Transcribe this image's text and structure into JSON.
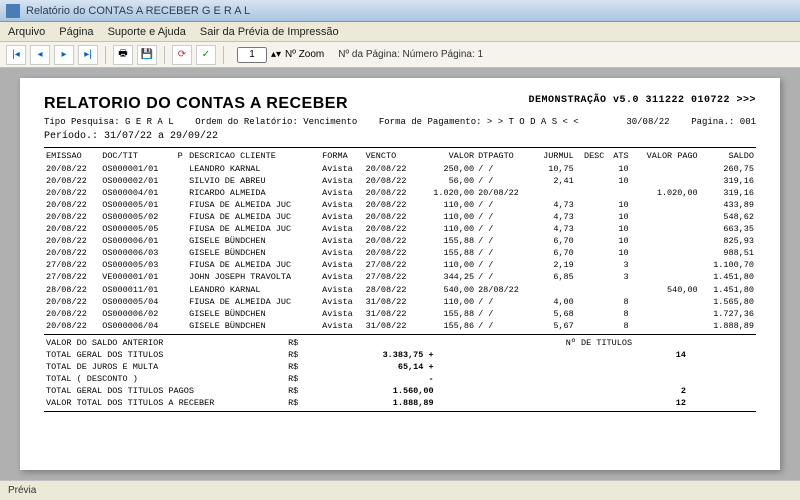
{
  "window": {
    "title": "Relatório do CONTAS A RECEBER G E R A L"
  },
  "menu": {
    "arquivo": "Arquivo",
    "pagina": "Página",
    "suporte": "Suporte e Ajuda",
    "sair": "Sair da Prévia de Impressão"
  },
  "toolbar": {
    "zoom_value": "1",
    "zoom_label": "Nº Zoom",
    "page_label": "Nº da Página: Número Página: 1"
  },
  "report": {
    "title": "RELATORIO DO CONTAS A RECEBER",
    "demo": "DEMONSTRAÇÃO v5.0 311222 010722 >>>",
    "sub1a": "Tipo Pesquisa: G E R A L",
    "sub1b": "Ordem do Relatório: Vencimento",
    "sub1c": "Forma de Pagamento: > > T O D A S < <",
    "date": "30/08/22",
    "pagina": "Pagina.: 001",
    "periodo": "Período.: 31/07/22 a 29/09/22",
    "headers": [
      "EMISSAO",
      "DOC/TIT",
      "P",
      "DESCRICAO CLIENTE",
      "FORMA",
      "VENCTO",
      "VALOR",
      "DTPAGTO",
      "JURMUL",
      "DESC",
      "ATS",
      "VALOR PAGO",
      "SALDO"
    ],
    "rows": [
      [
        "20/08/22",
        "OS000001/01",
        "",
        "LEANDRO KARNAL",
        "Avista",
        "20/08/22",
        "250,00",
        "/  /",
        "10,75",
        "",
        "10",
        "",
        "260,75"
      ],
      [
        "20/08/22",
        "OS000002/01",
        "",
        "SILVIO DE ABREU",
        "Avista",
        "20/08/22",
        "56,00",
        "/  /",
        "2,41",
        "",
        "10",
        "",
        "319,16"
      ],
      [
        "20/08/22",
        "OS000004/01",
        "",
        "RICARDO ALMEIDA",
        "Avista",
        "20/08/22",
        "1.020,00",
        "20/08/22",
        "",
        "",
        "",
        "1.020,00",
        "319,16"
      ],
      [
        "20/08/22",
        "OS000005/01",
        "",
        "FIUSA DE ALMEIDA JUC",
        "Avista",
        "20/08/22",
        "110,00",
        "/  /",
        "4,73",
        "",
        "10",
        "",
        "433,89"
      ],
      [
        "20/08/22",
        "OS000005/02",
        "",
        "FIUSA DE ALMEIDA JUC",
        "Avista",
        "20/08/22",
        "110,00",
        "/  /",
        "4,73",
        "",
        "10",
        "",
        "548,62"
      ],
      [
        "20/08/22",
        "OS000005/05",
        "",
        "FIUSA DE ALMEIDA JUC",
        "Avista",
        "20/08/22",
        "110,00",
        "/  /",
        "4,73",
        "",
        "10",
        "",
        "663,35"
      ],
      [
        "20/08/22",
        "OS000006/01",
        "",
        "GISELE BÜNDCHEN",
        "Avista",
        "20/08/22",
        "155,88",
        "/  /",
        "6,70",
        "",
        "10",
        "",
        "825,93"
      ],
      [
        "20/08/22",
        "OS000006/03",
        "",
        "GISELE BÜNDCHEN",
        "Avista",
        "20/08/22",
        "155,88",
        "/  /",
        "6,70",
        "",
        "10",
        "",
        "988,51"
      ],
      [
        "27/08/22",
        "OS000005/03",
        "",
        "FIUSA DE ALMEIDA JUC",
        "Avista",
        "27/08/22",
        "110,00",
        "/  /",
        "2,19",
        "",
        "3",
        "",
        "1.100,70"
      ],
      [
        "27/08/22",
        "VE000001/01",
        "",
        "JOHN JOSEPH TRAVOLTA",
        "Avista",
        "27/08/22",
        "344,25",
        "/  /",
        "6,85",
        "",
        "3",
        "",
        "1.451,80"
      ],
      [
        "28/08/22",
        "OS000011/01",
        "",
        "LEANDRO KARNAL",
        "Avista",
        "28/08/22",
        "540,00",
        "28/08/22",
        "",
        "",
        "",
        "540,00",
        "1.451,80"
      ],
      [
        "20/08/22",
        "OS000005/04",
        "",
        "FIUSA DE ALMEIDA JUC",
        "Avista",
        "31/08/22",
        "110,00",
        "/  /",
        "4,00",
        "",
        "8",
        "",
        "1.565,80"
      ],
      [
        "20/08/22",
        "OS000006/02",
        "",
        "GISELE BÜNDCHEN",
        "Avista",
        "31/08/22",
        "155,88",
        "/  /",
        "5,68",
        "",
        "8",
        "",
        "1.727,36"
      ],
      [
        "20/08/22",
        "OS000006/04",
        "",
        "GISELE BÜNDCHEN",
        "Avista",
        "31/08/22",
        "155,86",
        "/  /",
        "5,67",
        "",
        "8",
        "",
        "1.888,89"
      ]
    ],
    "totals": {
      "saldo_anterior_lbl": "VALOR DO SALDO ANTERIOR",
      "saldo_anterior_cur": "R$",
      "saldo_anterior_val": "",
      "ntit_lbl": "Nº DE TITULOS",
      "total_titulos_lbl": "TOTAL GERAL DOS TITULOS",
      "total_titulos_cur": "R$",
      "total_titulos_val": "3.383,75 +",
      "total_titulos_cnt": "14",
      "juros_lbl": "TOTAL DE JUROS E MULTA",
      "juros_cur": "R$",
      "juros_val": "65,14 +",
      "desconto_lbl": "TOTAL ( DESCONTO )",
      "desconto_cur": "R$",
      "desconto_val": "-",
      "pagos_lbl": "TOTAL GERAL DOS TITULOS PAGOS",
      "pagos_cur": "R$",
      "pagos_val": "1.560,00",
      "pagos_cnt": "2",
      "receber_lbl": "VALOR TOTAL DOS TITULOS A RECEBER",
      "receber_cur": "R$",
      "receber_val": "1.888,89",
      "receber_cnt": "12"
    }
  },
  "status": {
    "label": "Prévia"
  }
}
